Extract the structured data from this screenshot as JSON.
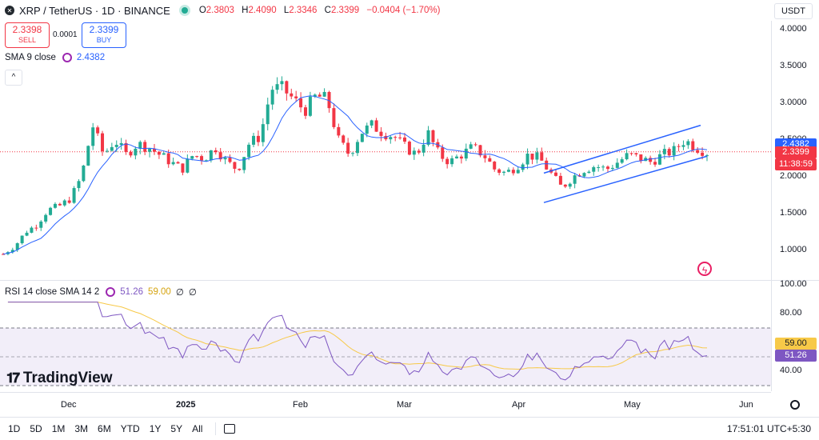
{
  "header": {
    "symbol": "XRP / TetherUS · 1D · BINANCE",
    "open_label": "O",
    "open": "2.3803",
    "high_label": "H",
    "high": "2.4090",
    "low_label": "L",
    "low": "2.3346",
    "close_label": "C",
    "close": "2.3399",
    "change": "−0.0404 (−1.70%)",
    "currency": "USDT"
  },
  "trade": {
    "sell_price": "2.3398",
    "sell_label": "SELL",
    "spread": "0.0001",
    "buy_price": "2.3399",
    "buy_label": "BUY"
  },
  "sma": {
    "label": "SMA 9 close",
    "value": "2.4382"
  },
  "rsi": {
    "label": "RSI 14 close SMA 14 2",
    "v1": "51.26",
    "v2": "59.00",
    "v3": "∅",
    "v4": "∅"
  },
  "price_axis": [
    "4.0000",
    "3.5000",
    "3.0000",
    "2.5000",
    "2.0000",
    "1.5000",
    "1.0000"
  ],
  "price_tags": {
    "sma": "2.4382",
    "last": "2.3399",
    "countdown": "11:38:59"
  },
  "rsi_axis": [
    "100.00",
    "80.00",
    "40.00"
  ],
  "rsi_tags": {
    "ma": "59.00",
    "rsi": "51.26"
  },
  "time_axis": [
    "Dec",
    "2025",
    "Feb",
    "Mar",
    "Apr",
    "May",
    "Jun"
  ],
  "timeframes": [
    "1D",
    "5D",
    "1M",
    "3M",
    "6M",
    "YTD",
    "1Y",
    "5Y",
    "All"
  ],
  "clock": "17:51:01 UTC+5:30",
  "logo": "TradingView",
  "colors": {
    "up": "#22ab94",
    "down": "#f23645",
    "sma": "#2962ff",
    "rsi": "#7e57c2",
    "rsi_ma": "#f7c948",
    "channel": "#2962ff"
  },
  "icons": [
    "xrp-logo-icon",
    "live-dot-icon",
    "settings-gear-icon",
    "collapse-chevron-icon",
    "flash-icon",
    "calendar-range-icon",
    "settings-icon"
  ],
  "chart_data": {
    "type": "candlestick",
    "title": "XRP / TetherUS · 1D · BINANCE",
    "ylim": [
      0.8,
      4.2
    ],
    "x_ticks": [
      "Dec",
      "2025",
      "Feb",
      "Mar",
      "Apr",
      "May",
      "Jun"
    ],
    "y_ticks": [
      1.0,
      1.5,
      2.0,
      2.5,
      3.0,
      3.5,
      4.0
    ],
    "close_series_approx": [
      0.95,
      1.05,
      1.25,
      1.35,
      1.55,
      1.6,
      1.7,
      2.0,
      2.7,
      2.3,
      2.5,
      2.3,
      2.45,
      2.4,
      2.3,
      2.2,
      2.1,
      2.3,
      2.25,
      2.4,
      2.2,
      2.1,
      2.45,
      2.55,
      3.2,
      3.2,
      3.05,
      2.9,
      3.1,
      3.05,
      2.5,
      2.3,
      2.6,
      2.7,
      2.6,
      2.55,
      2.4,
      2.3,
      2.6,
      2.3,
      2.2,
      2.3,
      2.4,
      2.3,
      2.1,
      2.05,
      2.15,
      2.3,
      2.25,
      2.05,
      1.85,
      2.0,
      2.1,
      2.15,
      2.1,
      2.2,
      2.3,
      2.25,
      2.2,
      2.3,
      2.35,
      2.5,
      2.4,
      2.33
    ],
    "rsi_ylim": [
      30,
      100
    ],
    "rsi_last": 51.26,
    "rsi_ma_last": 59.0,
    "sma_last": 2.4382
  }
}
